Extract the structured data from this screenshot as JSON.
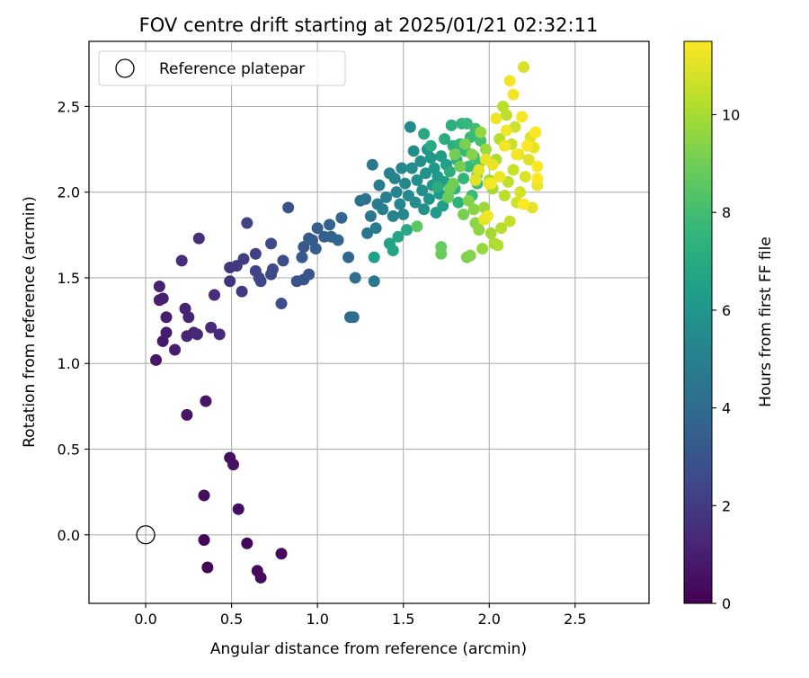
{
  "chart_data": {
    "type": "scatter",
    "title": "FOV centre drift starting at 2025/01/21 02:32:11",
    "xlabel": "Angular distance from reference (arcmin)",
    "ylabel": "Rotation from reference (arcmin)",
    "xlim": [
      -0.33,
      2.93
    ],
    "ylim": [
      -0.4,
      2.88
    ],
    "xticks": [
      "0.0",
      "0.5",
      "1.0",
      "1.5",
      "2.0",
      "2.5"
    ],
    "xtick_values": [
      0,
      0.5,
      1,
      1.5,
      2,
      2.5
    ],
    "yticks": [
      "0.0",
      "0.5",
      "1.0",
      "1.5",
      "2.0",
      "2.5"
    ],
    "ytick_values": [
      0,
      0.5,
      1,
      1.5,
      2,
      2.5
    ],
    "grid": true,
    "legend": {
      "position": "top-left",
      "entries": [
        "Reference platepar"
      ]
    },
    "reference_point": {
      "x": 0,
      "y": 0
    },
    "colorbar": {
      "label": "Hours from first FF file",
      "range": [
        0,
        11.5
      ],
      "ticks": [
        "0",
        "2",
        "4",
        "6",
        "8",
        "10"
      ],
      "tick_values": [
        0,
        2,
        4,
        6,
        8,
        10
      ],
      "colormap": "viridis"
    },
    "points": [
      {
        "x": 0.36,
        "y": -0.19,
        "h": 0.1
      },
      {
        "x": 0.34,
        "y": -0.03,
        "h": 0.15
      },
      {
        "x": 0.59,
        "y": -0.05,
        "h": 0.2
      },
      {
        "x": 0.65,
        "y": -0.21,
        "h": 0.25
      },
      {
        "x": 0.67,
        "y": -0.25,
        "h": 0.3
      },
      {
        "x": 0.79,
        "y": -0.11,
        "h": 0.3
      },
      {
        "x": 0.54,
        "y": 0.15,
        "h": 0.4
      },
      {
        "x": 0.34,
        "y": 0.23,
        "h": 0.45
      },
      {
        "x": 0.49,
        "y": 0.45,
        "h": 0.5
      },
      {
        "x": 0.51,
        "y": 0.41,
        "h": 0.55
      },
      {
        "x": 0.35,
        "y": 0.78,
        "h": 0.6
      },
      {
        "x": 0.24,
        "y": 0.7,
        "h": 0.65
      },
      {
        "x": 0.06,
        "y": 1.02,
        "h": 0.7
      },
      {
        "x": 0.1,
        "y": 1.13,
        "h": 0.8
      },
      {
        "x": 0.12,
        "y": 1.18,
        "h": 0.85
      },
      {
        "x": 0.17,
        "y": 1.08,
        "h": 0.9
      },
      {
        "x": 0.12,
        "y": 1.27,
        "h": 0.9
      },
      {
        "x": 0.08,
        "y": 1.37,
        "h": 1.0
      },
      {
        "x": 0.1,
        "y": 1.38,
        "h": 1.0
      },
      {
        "x": 0.08,
        "y": 1.45,
        "h": 1.05
      },
      {
        "x": 0.23,
        "y": 1.32,
        "h": 1.1
      },
      {
        "x": 0.25,
        "y": 1.27,
        "h": 1.15
      },
      {
        "x": 0.24,
        "y": 1.16,
        "h": 1.2
      },
      {
        "x": 0.28,
        "y": 1.18,
        "h": 1.2
      },
      {
        "x": 0.3,
        "y": 1.17,
        "h": 1.3
      },
      {
        "x": 0.38,
        "y": 1.21,
        "h": 1.35
      },
      {
        "x": 0.43,
        "y": 1.17,
        "h": 1.4
      },
      {
        "x": 0.4,
        "y": 1.4,
        "h": 1.45
      },
      {
        "x": 0.21,
        "y": 1.6,
        "h": 1.5
      },
      {
        "x": 0.31,
        "y": 1.73,
        "h": 1.55
      },
      {
        "x": 0.49,
        "y": 1.48,
        "h": 1.7
      },
      {
        "x": 0.49,
        "y": 1.56,
        "h": 1.8
      },
      {
        "x": 0.53,
        "y": 1.57,
        "h": 1.9
      },
      {
        "x": 0.56,
        "y": 1.42,
        "h": 2.0
      },
      {
        "x": 0.57,
        "y": 1.61,
        "h": 2.05
      },
      {
        "x": 0.64,
        "y": 1.64,
        "h": 2.2
      },
      {
        "x": 0.64,
        "y": 1.54,
        "h": 2.3
      },
      {
        "x": 0.59,
        "y": 1.82,
        "h": 2.3
      },
      {
        "x": 0.66,
        "y": 1.5,
        "h": 2.4
      },
      {
        "x": 0.67,
        "y": 1.48,
        "h": 2.45
      },
      {
        "x": 0.73,
        "y": 1.52,
        "h": 2.5
      },
      {
        "x": 0.74,
        "y": 1.55,
        "h": 2.55
      },
      {
        "x": 0.73,
        "y": 1.7,
        "h": 2.6
      },
      {
        "x": 0.8,
        "y": 1.6,
        "h": 2.7
      },
      {
        "x": 0.79,
        "y": 1.35,
        "h": 2.75
      },
      {
        "x": 0.83,
        "y": 1.91,
        "h": 2.8
      },
      {
        "x": 0.88,
        "y": 1.48,
        "h": 2.9
      },
      {
        "x": 0.92,
        "y": 1.49,
        "h": 3.0
      },
      {
        "x": 0.95,
        "y": 1.52,
        "h": 3.05
      },
      {
        "x": 0.91,
        "y": 1.62,
        "h": 3.1
      },
      {
        "x": 0.92,
        "y": 1.68,
        "h": 3.15
      },
      {
        "x": 0.95,
        "y": 1.73,
        "h": 3.2
      },
      {
        "x": 0.97,
        "y": 1.72,
        "h": 3.3
      },
      {
        "x": 0.99,
        "y": 1.67,
        "h": 3.35
      },
      {
        "x": 1.0,
        "y": 1.79,
        "h": 3.4
      },
      {
        "x": 1.04,
        "y": 1.74,
        "h": 3.5
      },
      {
        "x": 1.07,
        "y": 1.81,
        "h": 3.55
      },
      {
        "x": 1.08,
        "y": 1.74,
        "h": 3.6
      },
      {
        "x": 1.12,
        "y": 1.72,
        "h": 3.7
      },
      {
        "x": 1.14,
        "y": 1.85,
        "h": 3.75
      },
      {
        "x": 1.18,
        "y": 1.62,
        "h": 3.8
      },
      {
        "x": 1.19,
        "y": 1.27,
        "h": 4.0
      },
      {
        "x": 1.21,
        "y": 1.27,
        "h": 4.1
      },
      {
        "x": 1.22,
        "y": 1.5,
        "h": 4.2
      },
      {
        "x": 1.25,
        "y": 1.95,
        "h": 4.3
      },
      {
        "x": 1.28,
        "y": 1.96,
        "h": 4.4
      },
      {
        "x": 1.29,
        "y": 1.76,
        "h": 4.5
      },
      {
        "x": 1.31,
        "y": 1.86,
        "h": 4.55
      },
      {
        "x": 1.32,
        "y": 2.16,
        "h": 4.6
      },
      {
        "x": 1.33,
        "y": 1.48,
        "h": 4.7
      },
      {
        "x": 1.34,
        "y": 1.79,
        "h": 4.75
      },
      {
        "x": 1.35,
        "y": 1.93,
        "h": 4.8
      },
      {
        "x": 1.36,
        "y": 2.04,
        "h": 4.9
      },
      {
        "x": 1.38,
        "y": 1.9,
        "h": 4.95
      },
      {
        "x": 1.4,
        "y": 1.97,
        "h": 5.0
      },
      {
        "x": 1.42,
        "y": 2.11,
        "h": 5.05
      },
      {
        "x": 1.44,
        "y": 1.86,
        "h": 5.1
      },
      {
        "x": 1.45,
        "y": 2.08,
        "h": 5.15
      },
      {
        "x": 1.46,
        "y": 2.0,
        "h": 5.2
      },
      {
        "x": 1.48,
        "y": 1.93,
        "h": 5.25
      },
      {
        "x": 1.49,
        "y": 2.14,
        "h": 5.3
      },
      {
        "x": 1.5,
        "y": 1.87,
        "h": 5.35
      },
      {
        "x": 1.51,
        "y": 2.05,
        "h": 5.4
      },
      {
        "x": 1.53,
        "y": 1.98,
        "h": 5.45
      },
      {
        "x": 1.54,
        "y": 2.38,
        "h": 5.5
      },
      {
        "x": 1.55,
        "y": 2.14,
        "h": 5.55
      },
      {
        "x": 1.56,
        "y": 2.24,
        "h": 5.6
      },
      {
        "x": 1.57,
        "y": 1.94,
        "h": 5.65
      },
      {
        "x": 1.58,
        "y": 2.07,
        "h": 5.7
      },
      {
        "x": 1.6,
        "y": 2.18,
        "h": 5.75
      },
      {
        "x": 1.61,
        "y": 2.01,
        "h": 5.8
      },
      {
        "x": 1.62,
        "y": 1.9,
        "h": 5.85
      },
      {
        "x": 1.63,
        "y": 2.11,
        "h": 5.9
      },
      {
        "x": 1.64,
        "y": 2.25,
        "h": 5.95
      },
      {
        "x": 1.65,
        "y": 1.96,
        "h": 6.0
      },
      {
        "x": 1.66,
        "y": 2.2,
        "h": 6.05
      },
      {
        "x": 1.67,
        "y": 2.04,
        "h": 6.1
      },
      {
        "x": 1.68,
        "y": 2.14,
        "h": 6.15
      },
      {
        "x": 1.69,
        "y": 1.88,
        "h": 6.2
      },
      {
        "x": 1.7,
        "y": 2.09,
        "h": 6.25
      },
      {
        "x": 1.71,
        "y": 1.99,
        "h": 6.3
      },
      {
        "x": 1.72,
        "y": 2.21,
        "h": 6.35
      },
      {
        "x": 1.73,
        "y": 1.92,
        "h": 6.4
      },
      {
        "x": 1.74,
        "y": 2.06,
        "h": 6.45
      },
      {
        "x": 1.75,
        "y": 2.16,
        "h": 6.5
      },
      {
        "x": 1.76,
        "y": 1.97,
        "h": 6.55
      },
      {
        "x": 1.33,
        "y": 1.62,
        "h": 6.5
      },
      {
        "x": 1.42,
        "y": 1.7,
        "h": 6.6
      },
      {
        "x": 1.44,
        "y": 1.66,
        "h": 6.7
      },
      {
        "x": 1.47,
        "y": 1.74,
        "h": 6.75
      },
      {
        "x": 1.52,
        "y": 1.78,
        "h": 6.85
      },
      {
        "x": 1.62,
        "y": 2.34,
        "h": 6.9
      },
      {
        "x": 1.66,
        "y": 2.27,
        "h": 7.0
      },
      {
        "x": 1.7,
        "y": 2.03,
        "h": 7.05
      },
      {
        "x": 1.74,
        "y": 2.31,
        "h": 7.1
      },
      {
        "x": 1.77,
        "y": 2.12,
        "h": 7.15
      },
      {
        "x": 1.78,
        "y": 2.39,
        "h": 7.2
      },
      {
        "x": 1.79,
        "y": 2.27,
        "h": 7.25
      },
      {
        "x": 1.8,
        "y": 2.02,
        "h": 7.3
      },
      {
        "x": 1.81,
        "y": 2.19,
        "h": 7.35
      },
      {
        "x": 1.82,
        "y": 1.94,
        "h": 7.4
      },
      {
        "x": 1.83,
        "y": 2.28,
        "h": 7.45
      },
      {
        "x": 1.84,
        "y": 2.4,
        "h": 7.5
      },
      {
        "x": 1.85,
        "y": 2.08,
        "h": 7.55
      },
      {
        "x": 1.86,
        "y": 2.24,
        "h": 7.6
      },
      {
        "x": 1.87,
        "y": 2.4,
        "h": 7.65
      },
      {
        "x": 1.88,
        "y": 2.15,
        "h": 7.7
      },
      {
        "x": 1.89,
        "y": 2.32,
        "h": 7.75
      },
      {
        "x": 1.9,
        "y": 1.98,
        "h": 7.8
      },
      {
        "x": 1.91,
        "y": 2.21,
        "h": 7.85
      },
      {
        "x": 1.92,
        "y": 2.37,
        "h": 7.9
      },
      {
        "x": 1.93,
        "y": 2.05,
        "h": 7.95
      },
      {
        "x": 1.94,
        "y": 2.17,
        "h": 8.0
      },
      {
        "x": 1.95,
        "y": 2.3,
        "h": 8.05
      },
      {
        "x": 1.58,
        "y": 1.8,
        "h": 8.6
      },
      {
        "x": 1.72,
        "y": 1.68,
        "h": 8.8
      },
      {
        "x": 1.72,
        "y": 1.64,
        "h": 8.85
      },
      {
        "x": 1.76,
        "y": 1.97,
        "h": 8.9
      },
      {
        "x": 1.77,
        "y": 2.02,
        "h": 8.95
      },
      {
        "x": 1.79,
        "y": 2.05,
        "h": 9.0
      },
      {
        "x": 1.8,
        "y": 2.22,
        "h": 9.05
      },
      {
        "x": 1.83,
        "y": 2.15,
        "h": 9.1
      },
      {
        "x": 1.85,
        "y": 1.87,
        "h": 9.15
      },
      {
        "x": 1.86,
        "y": 2.28,
        "h": 9.2
      },
      {
        "x": 1.87,
        "y": 1.62,
        "h": 9.25
      },
      {
        "x": 1.88,
        "y": 1.95,
        "h": 9.3
      },
      {
        "x": 1.89,
        "y": 1.63,
        "h": 9.35
      },
      {
        "x": 1.9,
        "y": 2.22,
        "h": 9.4
      },
      {
        "x": 1.91,
        "y": 1.9,
        "h": 9.45
      },
      {
        "x": 1.92,
        "y": 1.82,
        "h": 9.5
      },
      {
        "x": 1.93,
        "y": 2.1,
        "h": 9.55
      },
      {
        "x": 1.94,
        "y": 1.78,
        "h": 9.6
      },
      {
        "x": 1.95,
        "y": 2.35,
        "h": 9.65
      },
      {
        "x": 1.96,
        "y": 1.67,
        "h": 9.7
      },
      {
        "x": 1.97,
        "y": 1.91,
        "h": 9.75
      },
      {
        "x": 1.98,
        "y": 2.25,
        "h": 9.8
      },
      {
        "x": 1.99,
        "y": 1.86,
        "h": 9.85
      },
      {
        "x": 2.0,
        "y": 2.07,
        "h": 9.9
      },
      {
        "x": 2.01,
        "y": 1.76,
        "h": 9.95
      },
      {
        "x": 2.02,
        "y": 2.02,
        "h": 10.0
      },
      {
        "x": 2.03,
        "y": 1.7,
        "h": 10.05
      },
      {
        "x": 2.04,
        "y": 2.19,
        "h": 10.1
      },
      {
        "x": 2.05,
        "y": 1.69,
        "h": 10.15
      },
      {
        "x": 2.06,
        "y": 2.31,
        "h": 10.2
      },
      {
        "x": 2.07,
        "y": 1.79,
        "h": 10.25
      },
      {
        "x": 2.08,
        "y": 2.5,
        "h": 10.3
      },
      {
        "x": 2.09,
        "y": 1.98,
        "h": 10.35
      },
      {
        "x": 2.1,
        "y": 2.45,
        "h": 10.4
      },
      {
        "x": 2.11,
        "y": 2.06,
        "h": 10.45
      },
      {
        "x": 2.12,
        "y": 1.83,
        "h": 10.5
      },
      {
        "x": 2.13,
        "y": 2.28,
        "h": 10.55
      },
      {
        "x": 2.14,
        "y": 2.13,
        "h": 10.6
      },
      {
        "x": 2.15,
        "y": 2.38,
        "h": 10.65
      },
      {
        "x": 2.16,
        "y": 1.94,
        "h": 10.7
      },
      {
        "x": 2.17,
        "y": 2.22,
        "h": 10.75
      },
      {
        "x": 2.18,
        "y": 2.0,
        "h": 10.8
      },
      {
        "x": 2.2,
        "y": 2.73,
        "h": 10.85
      },
      {
        "x": 2.21,
        "y": 2.09,
        "h": 10.9
      },
      {
        "x": 2.23,
        "y": 2.19,
        "h": 10.95
      },
      {
        "x": 2.24,
        "y": 2.32,
        "h": 11.0
      },
      {
        "x": 2.25,
        "y": 1.91,
        "h": 11.05
      },
      {
        "x": 2.26,
        "y": 2.26,
        "h": 11.1
      },
      {
        "x": 2.28,
        "y": 2.04,
        "h": 11.15
      },
      {
        "x": 1.92,
        "y": 2.07,
        "h": 11.0
      },
      {
        "x": 1.94,
        "y": 2.13,
        "h": 11.05
      },
      {
        "x": 1.97,
        "y": 1.84,
        "h": 11.1
      },
      {
        "x": 1.98,
        "y": 2.19,
        "h": 11.1
      },
      {
        "x": 2.0,
        "y": 2.05,
        "h": 11.15
      },
      {
        "x": 2.02,
        "y": 2.16,
        "h": 11.2
      },
      {
        "x": 2.04,
        "y": 2.43,
        "h": 11.2
      },
      {
        "x": 2.06,
        "y": 2.09,
        "h": 11.25
      },
      {
        "x": 2.09,
        "y": 2.27,
        "h": 11.3
      },
      {
        "x": 2.1,
        "y": 2.36,
        "h": 11.3
      },
      {
        "x": 2.12,
        "y": 2.65,
        "h": 11.35
      },
      {
        "x": 2.14,
        "y": 2.57,
        "h": 11.35
      },
      {
        "x": 2.16,
        "y": 2.22,
        "h": 11.4
      },
      {
        "x": 2.19,
        "y": 2.44,
        "h": 11.4
      },
      {
        "x": 2.2,
        "y": 1.93,
        "h": 11.45
      },
      {
        "x": 2.22,
        "y": 2.27,
        "h": 11.45
      },
      {
        "x": 2.27,
        "y": 2.35,
        "h": 11.5
      },
      {
        "x": 2.28,
        "y": 2.15,
        "h": 11.5
      },
      {
        "x": 2.28,
        "y": 2.08,
        "h": 11.5
      },
      {
        "x": 1.99,
        "y": 1.86,
        "h": 11.3
      },
      {
        "x": 2.01,
        "y": 2.05,
        "h": 11.4
      }
    ]
  }
}
